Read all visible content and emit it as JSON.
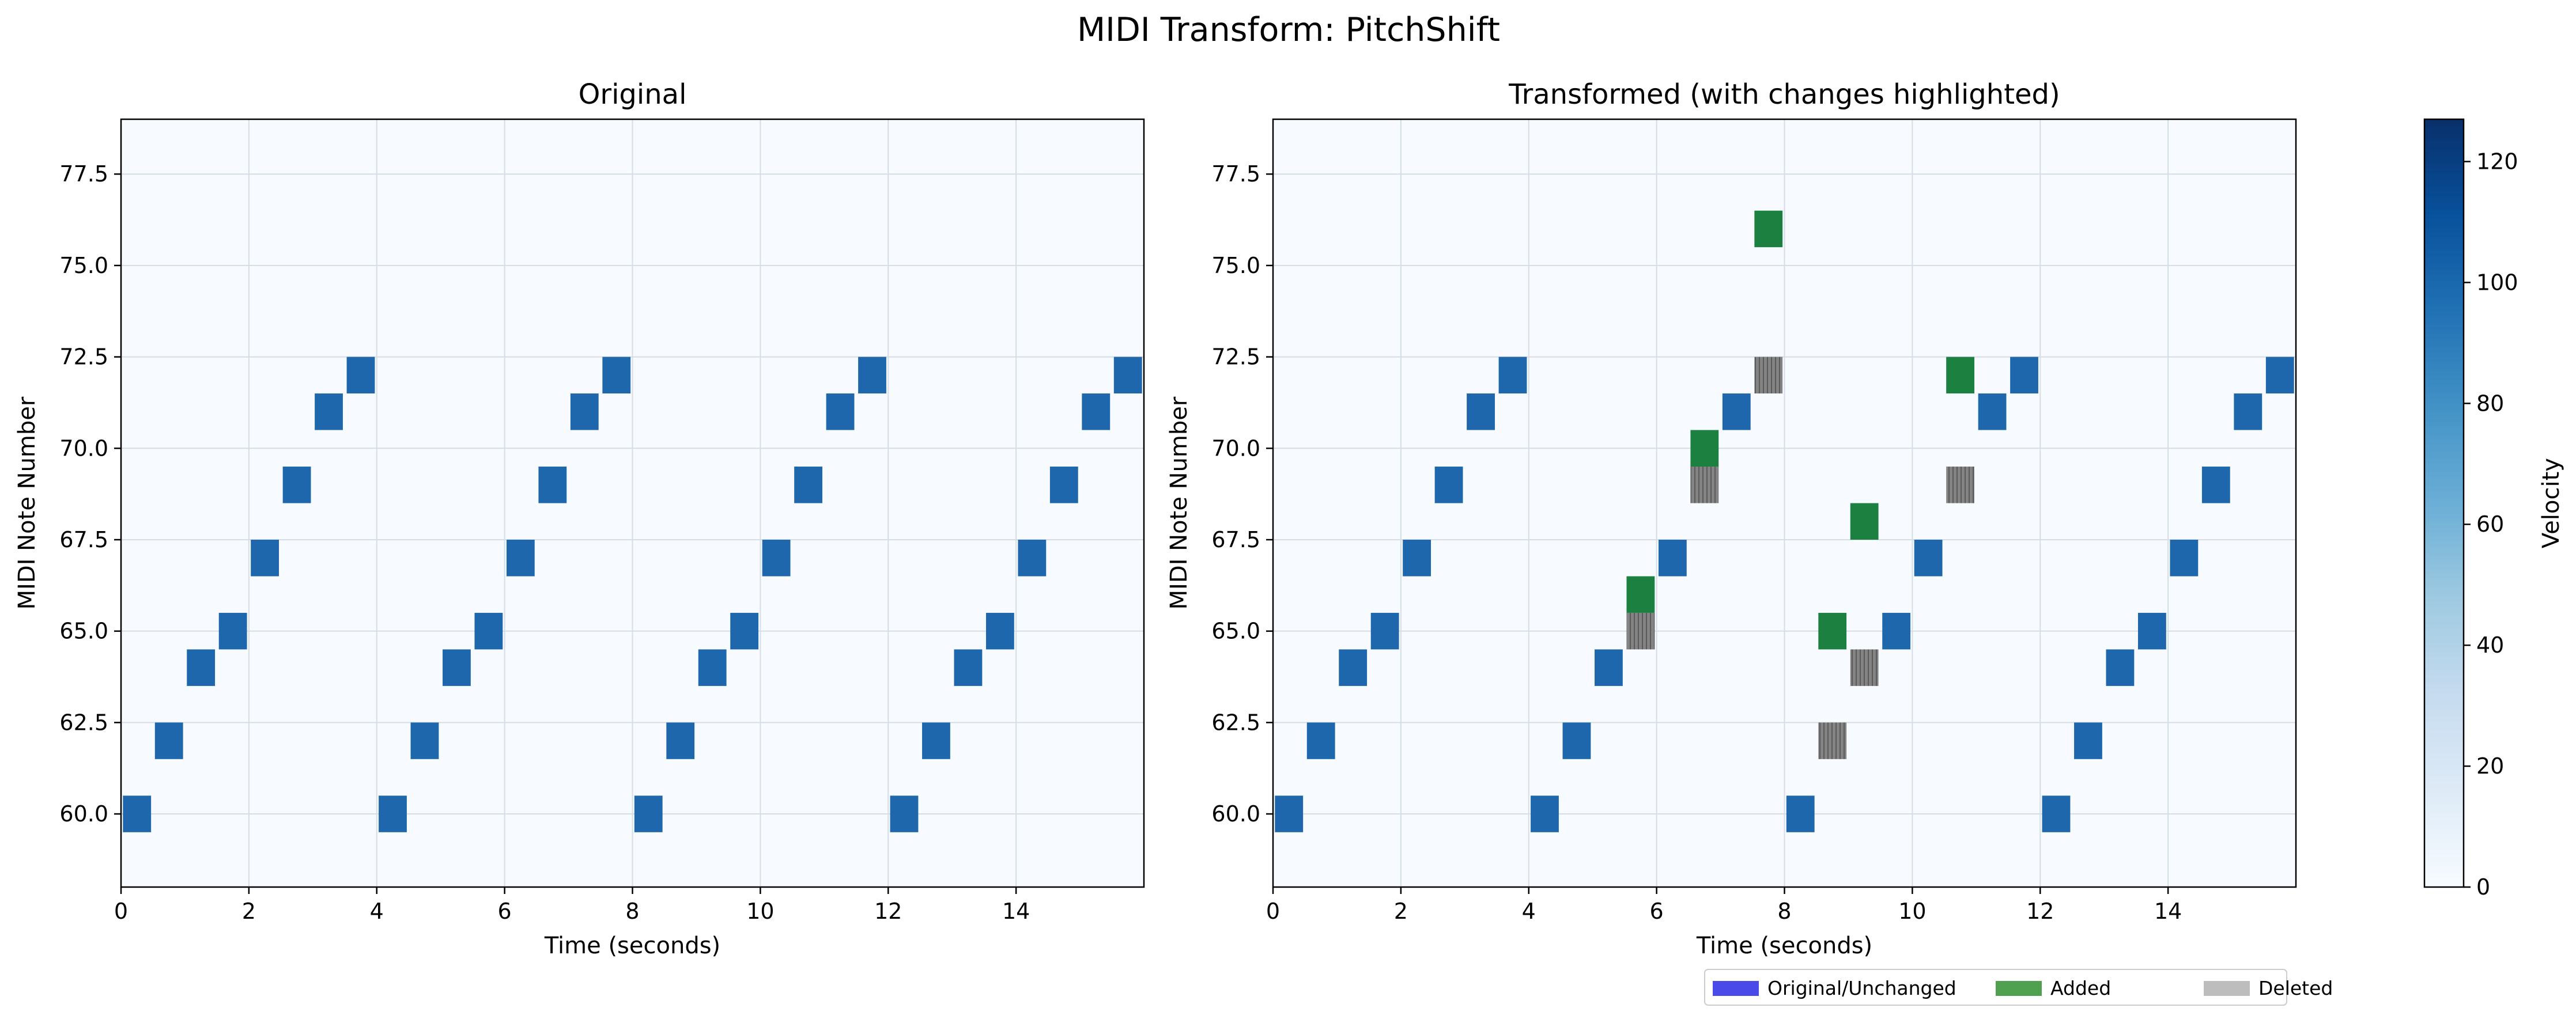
{
  "figure": {
    "title": "MIDI Transform: PitchShift"
  },
  "chart_data": [
    {
      "type": "heatmap",
      "subtype": "piano-roll",
      "title": "Original",
      "xlabel": "Time (seconds)",
      "ylabel": "MIDI Note Number",
      "xlim": [
        0,
        16
      ],
      "ylim": [
        58,
        79
      ],
      "xticks": [
        0,
        2,
        4,
        6,
        8,
        10,
        12,
        14
      ],
      "yticks": [
        60.0,
        62.5,
        65.0,
        67.5,
        70.0,
        72.5,
        75.0,
        77.5
      ],
      "ytick_labels": [
        "60.0",
        "62.5",
        "65.0",
        "67.5",
        "70.0",
        "72.5",
        "75.0",
        "77.5"
      ],
      "grid": true,
      "background_color": "#f7fbff",
      "note_duration": 0.5,
      "notes": [
        {
          "start": 0.0,
          "pitch": 60,
          "velocity": 100,
          "status": "unchanged"
        },
        {
          "start": 0.5,
          "pitch": 62,
          "velocity": 100,
          "status": "unchanged"
        },
        {
          "start": 1.0,
          "pitch": 64,
          "velocity": 100,
          "status": "unchanged"
        },
        {
          "start": 1.5,
          "pitch": 65,
          "velocity": 100,
          "status": "unchanged"
        },
        {
          "start": 2.0,
          "pitch": 67,
          "velocity": 100,
          "status": "unchanged"
        },
        {
          "start": 2.5,
          "pitch": 69,
          "velocity": 100,
          "status": "unchanged"
        },
        {
          "start": 3.0,
          "pitch": 71,
          "velocity": 100,
          "status": "unchanged"
        },
        {
          "start": 3.5,
          "pitch": 72,
          "velocity": 100,
          "status": "unchanged"
        },
        {
          "start": 4.0,
          "pitch": 60,
          "velocity": 100,
          "status": "unchanged"
        },
        {
          "start": 4.5,
          "pitch": 62,
          "velocity": 100,
          "status": "unchanged"
        },
        {
          "start": 5.0,
          "pitch": 64,
          "velocity": 100,
          "status": "unchanged"
        },
        {
          "start": 5.5,
          "pitch": 65,
          "velocity": 100,
          "status": "unchanged"
        },
        {
          "start": 6.0,
          "pitch": 67,
          "velocity": 100,
          "status": "unchanged"
        },
        {
          "start": 6.5,
          "pitch": 69,
          "velocity": 100,
          "status": "unchanged"
        },
        {
          "start": 7.0,
          "pitch": 71,
          "velocity": 100,
          "status": "unchanged"
        },
        {
          "start": 7.5,
          "pitch": 72,
          "velocity": 100,
          "status": "unchanged"
        },
        {
          "start": 8.0,
          "pitch": 60,
          "velocity": 100,
          "status": "unchanged"
        },
        {
          "start": 8.5,
          "pitch": 62,
          "velocity": 100,
          "status": "unchanged"
        },
        {
          "start": 9.0,
          "pitch": 64,
          "velocity": 100,
          "status": "unchanged"
        },
        {
          "start": 9.5,
          "pitch": 65,
          "velocity": 100,
          "status": "unchanged"
        },
        {
          "start": 10.0,
          "pitch": 67,
          "velocity": 100,
          "status": "unchanged"
        },
        {
          "start": 10.5,
          "pitch": 69,
          "velocity": 100,
          "status": "unchanged"
        },
        {
          "start": 11.0,
          "pitch": 71,
          "velocity": 100,
          "status": "unchanged"
        },
        {
          "start": 11.5,
          "pitch": 72,
          "velocity": 100,
          "status": "unchanged"
        },
        {
          "start": 12.0,
          "pitch": 60,
          "velocity": 100,
          "status": "unchanged"
        },
        {
          "start": 12.5,
          "pitch": 62,
          "velocity": 100,
          "status": "unchanged"
        },
        {
          "start": 13.0,
          "pitch": 64,
          "velocity": 100,
          "status": "unchanged"
        },
        {
          "start": 13.5,
          "pitch": 65,
          "velocity": 100,
          "status": "unchanged"
        },
        {
          "start": 14.0,
          "pitch": 67,
          "velocity": 100,
          "status": "unchanged"
        },
        {
          "start": 14.5,
          "pitch": 69,
          "velocity": 100,
          "status": "unchanged"
        },
        {
          "start": 15.0,
          "pitch": 71,
          "velocity": 100,
          "status": "unchanged"
        },
        {
          "start": 15.5,
          "pitch": 72,
          "velocity": 100,
          "status": "unchanged"
        }
      ]
    },
    {
      "type": "heatmap",
      "subtype": "piano-roll",
      "title": "Transformed (with changes highlighted)",
      "xlabel": "Time (seconds)",
      "ylabel": "MIDI Note Number",
      "xlim": [
        0,
        16
      ],
      "ylim": [
        58,
        79
      ],
      "xticks": [
        0,
        2,
        4,
        6,
        8,
        10,
        12,
        14
      ],
      "yticks": [
        60.0,
        62.5,
        65.0,
        67.5,
        70.0,
        72.5,
        75.0,
        77.5
      ],
      "ytick_labels": [
        "60.0",
        "62.5",
        "65.0",
        "67.5",
        "70.0",
        "72.5",
        "75.0",
        "77.5"
      ],
      "grid": true,
      "background_color": "#f7fbff",
      "note_duration": 0.5,
      "notes": [
        {
          "start": 0.0,
          "pitch": 60,
          "velocity": 100,
          "status": "unchanged"
        },
        {
          "start": 0.5,
          "pitch": 62,
          "velocity": 100,
          "status": "unchanged"
        },
        {
          "start": 1.0,
          "pitch": 64,
          "velocity": 100,
          "status": "unchanged"
        },
        {
          "start": 1.5,
          "pitch": 65,
          "velocity": 100,
          "status": "unchanged"
        },
        {
          "start": 2.0,
          "pitch": 67,
          "velocity": 100,
          "status": "unchanged"
        },
        {
          "start": 2.5,
          "pitch": 69,
          "velocity": 100,
          "status": "unchanged"
        },
        {
          "start": 3.0,
          "pitch": 71,
          "velocity": 100,
          "status": "unchanged"
        },
        {
          "start": 3.5,
          "pitch": 72,
          "velocity": 100,
          "status": "unchanged"
        },
        {
          "start": 4.0,
          "pitch": 60,
          "velocity": 100,
          "status": "unchanged"
        },
        {
          "start": 4.5,
          "pitch": 62,
          "velocity": 100,
          "status": "unchanged"
        },
        {
          "start": 5.0,
          "pitch": 64,
          "velocity": 100,
          "status": "unchanged"
        },
        {
          "start": 5.5,
          "pitch": 65,
          "velocity": 100,
          "status": "deleted"
        },
        {
          "start": 5.5,
          "pitch": 66,
          "velocity": 100,
          "status": "added"
        },
        {
          "start": 6.0,
          "pitch": 67,
          "velocity": 100,
          "status": "unchanged"
        },
        {
          "start": 6.5,
          "pitch": 69,
          "velocity": 100,
          "status": "deleted"
        },
        {
          "start": 6.5,
          "pitch": 70,
          "velocity": 100,
          "status": "added"
        },
        {
          "start": 7.0,
          "pitch": 71,
          "velocity": 100,
          "status": "unchanged"
        },
        {
          "start": 7.5,
          "pitch": 72,
          "velocity": 100,
          "status": "deleted"
        },
        {
          "start": 7.5,
          "pitch": 76,
          "velocity": 100,
          "status": "added"
        },
        {
          "start": 8.0,
          "pitch": 60,
          "velocity": 100,
          "status": "unchanged"
        },
        {
          "start": 8.5,
          "pitch": 62,
          "velocity": 100,
          "status": "deleted"
        },
        {
          "start": 8.5,
          "pitch": 65,
          "velocity": 100,
          "status": "added"
        },
        {
          "start": 9.0,
          "pitch": 64,
          "velocity": 100,
          "status": "deleted"
        },
        {
          "start": 9.0,
          "pitch": 68,
          "velocity": 100,
          "status": "added"
        },
        {
          "start": 9.5,
          "pitch": 65,
          "velocity": 100,
          "status": "unchanged"
        },
        {
          "start": 10.0,
          "pitch": 67,
          "velocity": 100,
          "status": "unchanged"
        },
        {
          "start": 10.5,
          "pitch": 69,
          "velocity": 100,
          "status": "deleted"
        },
        {
          "start": 10.5,
          "pitch": 72,
          "velocity": 100,
          "status": "added"
        },
        {
          "start": 11.0,
          "pitch": 71,
          "velocity": 100,
          "status": "unchanged"
        },
        {
          "start": 11.5,
          "pitch": 72,
          "velocity": 100,
          "status": "unchanged"
        },
        {
          "start": 12.0,
          "pitch": 60,
          "velocity": 100,
          "status": "unchanged"
        },
        {
          "start": 12.5,
          "pitch": 62,
          "velocity": 100,
          "status": "unchanged"
        },
        {
          "start": 13.0,
          "pitch": 64,
          "velocity": 100,
          "status": "unchanged"
        },
        {
          "start": 13.5,
          "pitch": 65,
          "velocity": 100,
          "status": "unchanged"
        },
        {
          "start": 14.0,
          "pitch": 67,
          "velocity": 100,
          "status": "unchanged"
        },
        {
          "start": 14.5,
          "pitch": 69,
          "velocity": 100,
          "status": "unchanged"
        },
        {
          "start": 15.0,
          "pitch": 71,
          "velocity": 100,
          "status": "unchanged"
        },
        {
          "start": 15.5,
          "pitch": 72,
          "velocity": 100,
          "status": "unchanged"
        }
      ],
      "legend": {
        "placement": "below",
        "entries": [
          {
            "label": "Original/Unchanged",
            "color": "#4a4ae8"
          },
          {
            "label": "Added",
            "color": "#4fa04f"
          },
          {
            "label": "Deleted",
            "color": "#bdbdbd"
          }
        ]
      }
    }
  ],
  "colorbar": {
    "label": "Velocity",
    "range": [
      0,
      127
    ],
    "ticks": [
      0,
      20,
      40,
      60,
      80,
      100,
      120
    ],
    "colormap": "Blues"
  },
  "colors": {
    "note_fill": "#1f67ac",
    "added_fill": "#1c8140",
    "deleted_fill": "#838383",
    "deleted_stripe": "#5a5a5a",
    "grid": "#d4dde6"
  }
}
